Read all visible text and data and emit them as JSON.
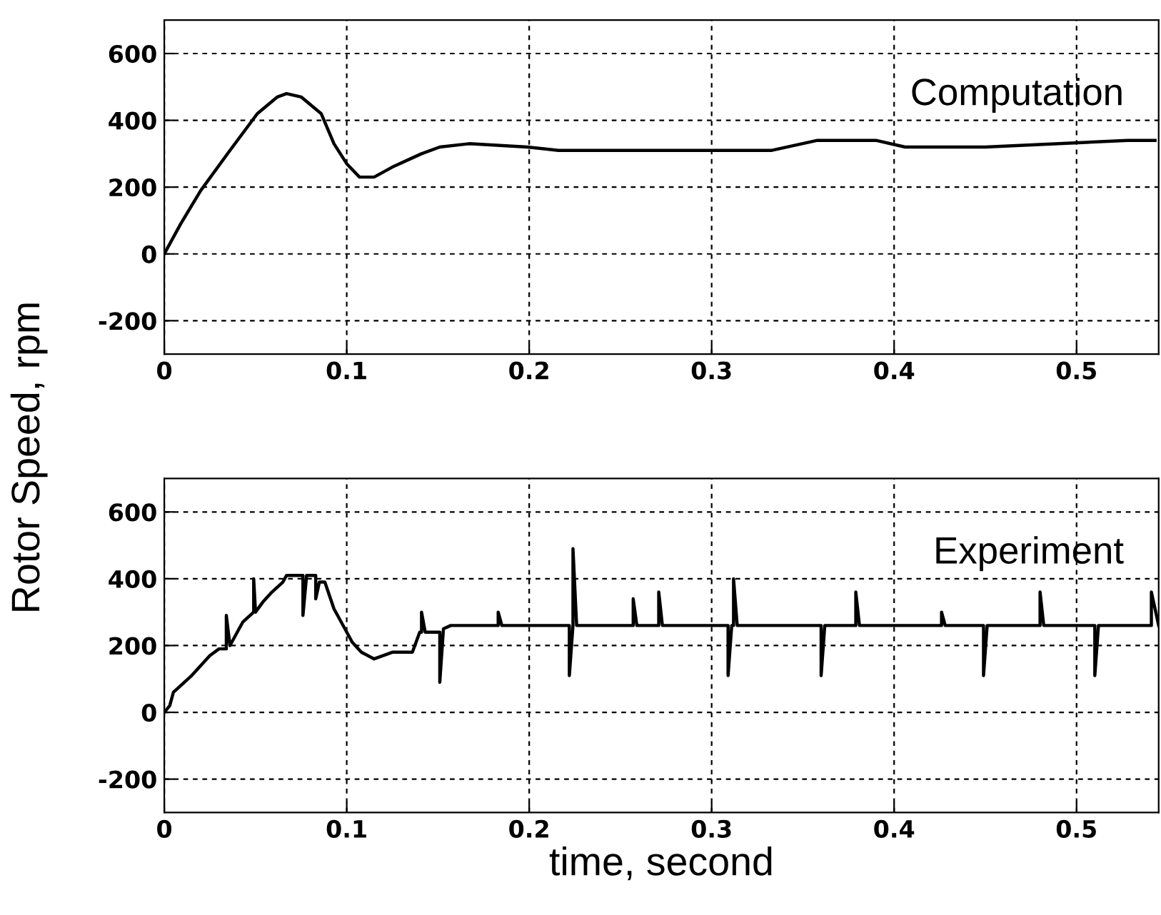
{
  "chart_data": [
    {
      "type": "line",
      "ylabel": "Rotor Speed, rpm",
      "xlim": [
        0,
        0.545
      ],
      "ylim": [
        -300,
        700
      ],
      "xticks": [
        0,
        0.1,
        0.2,
        0.3,
        0.4,
        0.5
      ],
      "yticks": [
        -200,
        0,
        200,
        400,
        600
      ],
      "grid": true,
      "line_style": "solid",
      "marker": "none",
      "series": [
        {
          "name": "Computation",
          "color": "#000000",
          "x": [
            0,
            0.009,
            0.02,
            0.036,
            0.051,
            0.062,
            0.067,
            0.075,
            0.086,
            0.093,
            0.1,
            0.107,
            0.115,
            0.125,
            0.141,
            0.151,
            0.167,
            0.199,
            0.216,
            0.3,
            0.333,
            0.358,
            0.39,
            0.406,
            0.45,
            0.528,
            0.543
          ],
          "values": [
            0,
            90,
            190,
            310,
            420,
            470,
            480,
            470,
            420,
            330,
            270,
            230,
            230,
            260,
            300,
            320,
            330,
            320,
            310,
            310,
            310,
            340,
            340,
            320,
            320,
            340,
            340
          ]
        }
      ]
    },
    {
      "type": "line",
      "xlabel": "time, second",
      "xlim": [
        0,
        0.545
      ],
      "ylim": [
        -300,
        700
      ],
      "xticks": [
        0,
        0.1,
        0.2,
        0.3,
        0.4,
        0.5
      ],
      "yticks": [
        -200,
        0,
        200,
        400,
        600
      ],
      "grid": true,
      "line_style": "solid",
      "marker": "none",
      "series": [
        {
          "name": "Experiment",
          "color": "#000000",
          "x": [
            0,
            0.003,
            0.005,
            0.009,
            0.015,
            0.02,
            0.025,
            0.03,
            0.034,
            0.034,
            0.036,
            0.041,
            0.043,
            0.049,
            0.049,
            0.05,
            0.054,
            0.059,
            0.065,
            0.067,
            0.072,
            0.076,
            0.076,
            0.078,
            0.08,
            0.083,
            0.083,
            0.085,
            0.088,
            0.093,
            0.099,
            0.103,
            0.108,
            0.115,
            0.125,
            0.136,
            0.14,
            0.141,
            0.141,
            0.143,
            0.146,
            0.151,
            0.151,
            0.153,
            0.157,
            0.167,
            0.183,
            0.183,
            0.185,
            0.193,
            0.222,
            0.222,
            0.224,
            0.224,
            0.226,
            0.228,
            0.257,
            0.257,
            0.259,
            0.271,
            0.271,
            0.273,
            0.309,
            0.309,
            0.311,
            0.312,
            0.312,
            0.314,
            0.36,
            0.36,
            0.362,
            0.379,
            0.379,
            0.381,
            0.426,
            0.426,
            0.428,
            0.449,
            0.449,
            0.451,
            0.48,
            0.48,
            0.482,
            0.51,
            0.51,
            0.512,
            0.541,
            0.541,
            0.545
          ],
          "values": [
            0,
            20,
            60,
            80,
            110,
            140,
            170,
            190,
            190,
            290,
            200,
            250,
            270,
            300,
            400,
            300,
            330,
            360,
            390,
            410,
            410,
            410,
            290,
            410,
            410,
            410,
            340,
            390,
            390,
            310,
            250,
            210,
            180,
            160,
            180,
            180,
            240,
            240,
            300,
            240,
            240,
            240,
            90,
            250,
            260,
            260,
            260,
            300,
            260,
            260,
            260,
            110,
            260,
            490,
            260,
            260,
            260,
            340,
            260,
            260,
            360,
            260,
            260,
            110,
            260,
            260,
            400,
            260,
            260,
            110,
            260,
            260,
            360,
            260,
            260,
            300,
            260,
            260,
            110,
            260,
            260,
            360,
            260,
            260,
            110,
            260,
            260,
            360,
            260
          ]
        }
      ]
    }
  ]
}
